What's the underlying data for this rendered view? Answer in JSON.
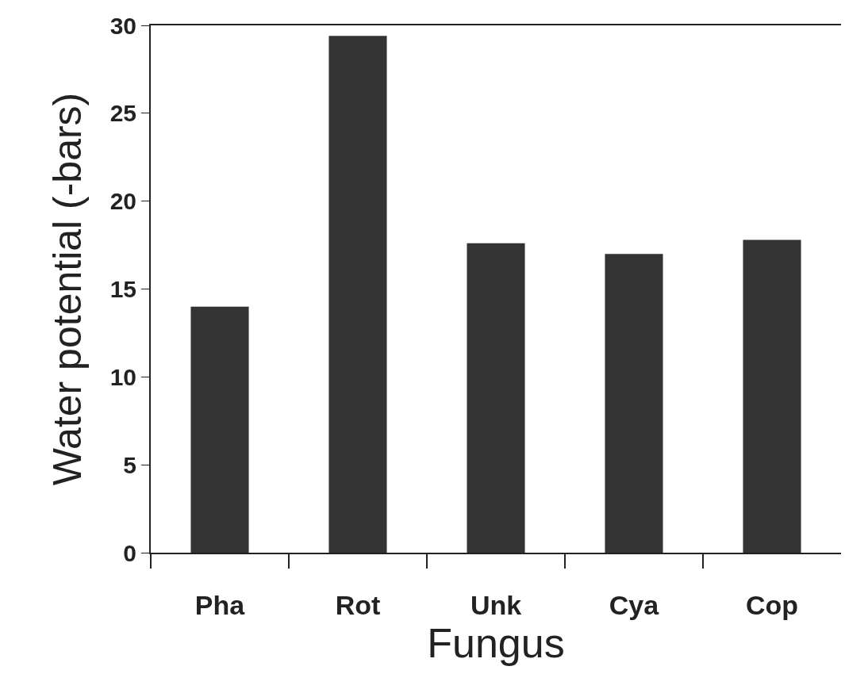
{
  "chart_data": {
    "type": "bar",
    "xlabel": "Fungus",
    "ylabel": "Water potential (-bars)",
    "categories": [
      "Pha",
      "Rot",
      "Unk",
      "Cya",
      "Cop"
    ],
    "values": [
      14.0,
      29.4,
      17.6,
      17.0,
      17.8
    ],
    "color": "#333333",
    "ylim": [
      0,
      30
    ],
    "yticks": [
      0,
      5,
      10,
      15,
      20,
      25,
      30
    ],
    "grid": false
  }
}
